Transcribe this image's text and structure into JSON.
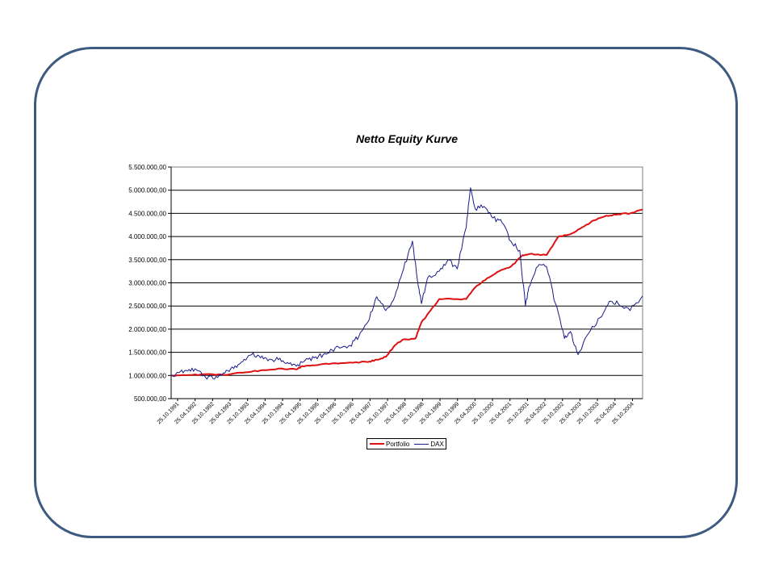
{
  "chart_data": {
    "type": "line",
    "title": "Netto Equity Kurve",
    "xlabel": "",
    "ylabel": "",
    "ylim": [
      500000,
      5500000
    ],
    "yticks": [
      500000,
      1000000,
      1500000,
      2000000,
      2500000,
      3000000,
      3500000,
      4000000,
      4500000,
      5000000,
      5500000
    ],
    "ytick_labels": [
      "500.000,00",
      "1.000.000,00",
      "1.500.000,00",
      "2.000.000,00",
      "2.500.000,00",
      "3.000.000,00",
      "3.500.000,00",
      "4.000.000,00",
      "4.500.000,00",
      "5.000.000,00",
      "5.500.000,00"
    ],
    "xlim": [
      "1991-10-25",
      "2004-12-31"
    ],
    "xtick_labels": [
      "25.10.1991",
      "25.04.1992",
      "25.10.1992",
      "25.04.1993",
      "25.10.1993",
      "25.04.1994",
      "25.10.1994",
      "25.04.1995",
      "25.10.1995",
      "25.04.1996",
      "25.10.1996",
      "25.04.1997",
      "25.10.1997",
      "25.04.1998",
      "25.10.1998",
      "25.04.1999",
      "25.10.1999",
      "25.04.2000",
      "25.10.2000",
      "25.04.2001",
      "25.10.2001",
      "25.04.2002",
      "25.10.2002",
      "25.04.2003",
      "25.10.2003",
      "25.04.2004",
      "25.10.2004"
    ],
    "grid": "horizontal",
    "legend_position": "bottom",
    "series": [
      {
        "name": "Portfolio",
        "color": "#dd1111",
        "points": [
          [
            "1991-10-25",
            1000000
          ],
          [
            "1992-04-25",
            1010000
          ],
          [
            "1992-10-25",
            1030000
          ],
          [
            "1993-04-25",
            1010000
          ],
          [
            "1993-10-25",
            1060000
          ],
          [
            "1994-04-25",
            1110000
          ],
          [
            "1994-10-25",
            1150000
          ],
          [
            "1995-04-25",
            1130000
          ],
          [
            "1995-06-25",
            1200000
          ],
          [
            "1995-10-25",
            1220000
          ],
          [
            "1996-04-25",
            1260000
          ],
          [
            "1996-10-25",
            1280000
          ],
          [
            "1997-04-25",
            1290000
          ],
          [
            "1997-07-25",
            1340000
          ],
          [
            "1997-10-25",
            1400000
          ],
          [
            "1998-01-25",
            1650000
          ],
          [
            "1998-04-25",
            1780000
          ],
          [
            "1998-08-25",
            1800000
          ],
          [
            "1998-10-25",
            2150000
          ],
          [
            "1999-01-25",
            2400000
          ],
          [
            "1999-04-25",
            2650000
          ],
          [
            "1999-10-25",
            2650000
          ],
          [
            "2000-01-25",
            2650000
          ],
          [
            "2000-04-25",
            2900000
          ],
          [
            "2000-08-25",
            3100000
          ],
          [
            "2000-12-25",
            3250000
          ],
          [
            "2001-04-25",
            3350000
          ],
          [
            "2001-08-25",
            3600000
          ],
          [
            "2001-10-25",
            3620000
          ],
          [
            "2002-04-25",
            3600000
          ],
          [
            "2002-08-25",
            4000000
          ],
          [
            "2002-12-25",
            4050000
          ],
          [
            "2003-04-25",
            4200000
          ],
          [
            "2003-08-25",
            4350000
          ],
          [
            "2003-12-25",
            4450000
          ],
          [
            "2004-04-25",
            4480000
          ],
          [
            "2004-08-25",
            4500000
          ],
          [
            "2004-12-31",
            4580000
          ]
        ]
      },
      {
        "name": "DAX",
        "color": "#1a1a8a",
        "points": [
          [
            "1991-10-25",
            1000000
          ],
          [
            "1992-01-25",
            1080000
          ],
          [
            "1992-04-25",
            1130000
          ],
          [
            "1992-07-25",
            1100000
          ],
          [
            "1992-10-25",
            920000
          ],
          [
            "1993-01-25",
            980000
          ],
          [
            "1993-04-25",
            1050000
          ],
          [
            "1993-07-25",
            1150000
          ],
          [
            "1993-10-25",
            1300000
          ],
          [
            "1994-01-25",
            1450000
          ],
          [
            "1994-04-25",
            1380000
          ],
          [
            "1994-07-25",
            1350000
          ],
          [
            "1994-10-25",
            1340000
          ],
          [
            "1995-01-25",
            1280000
          ],
          [
            "1995-04-25",
            1200000
          ],
          [
            "1995-07-25",
            1330000
          ],
          [
            "1995-10-25",
            1380000
          ],
          [
            "1996-01-25",
            1450000
          ],
          [
            "1996-04-25",
            1550000
          ],
          [
            "1996-07-25",
            1600000
          ],
          [
            "1996-10-25",
            1650000
          ],
          [
            "1997-01-25",
            1850000
          ],
          [
            "1997-04-25",
            2150000
          ],
          [
            "1997-07-25",
            2700000
          ],
          [
            "1997-10-25",
            2400000
          ],
          [
            "1998-01-25",
            2700000
          ],
          [
            "1998-04-25",
            3300000
          ],
          [
            "1998-07-25",
            3900000
          ],
          [
            "1998-09-25",
            2900000
          ],
          [
            "1998-10-25",
            2550000
          ],
          [
            "1998-12-25",
            3100000
          ],
          [
            "1999-04-25",
            3250000
          ],
          [
            "1999-07-25",
            3500000
          ],
          [
            "1999-10-25",
            3300000
          ],
          [
            "2000-01-25",
            4200000
          ],
          [
            "2000-03-10",
            5050000
          ],
          [
            "2000-04-25",
            4600000
          ],
          [
            "2000-07-25",
            4650000
          ],
          [
            "2000-10-25",
            4400000
          ],
          [
            "2001-01-25",
            4300000
          ],
          [
            "2001-04-25",
            3900000
          ],
          [
            "2001-07-25",
            3700000
          ],
          [
            "2001-09-21",
            2500000
          ],
          [
            "2001-10-25",
            2900000
          ],
          [
            "2002-01-25",
            3350000
          ],
          [
            "2002-04-25",
            3350000
          ],
          [
            "2002-07-25",
            2550000
          ],
          [
            "2002-10-25",
            1800000
          ],
          [
            "2002-12-25",
            1950000
          ],
          [
            "2003-03-12",
            1450000
          ],
          [
            "2003-06-25",
            1900000
          ],
          [
            "2003-10-25",
            2250000
          ],
          [
            "2004-01-25",
            2600000
          ],
          [
            "2004-04-25",
            2550000
          ],
          [
            "2004-08-25",
            2400000
          ],
          [
            "2004-12-31",
            2720000
          ]
        ]
      }
    ]
  }
}
